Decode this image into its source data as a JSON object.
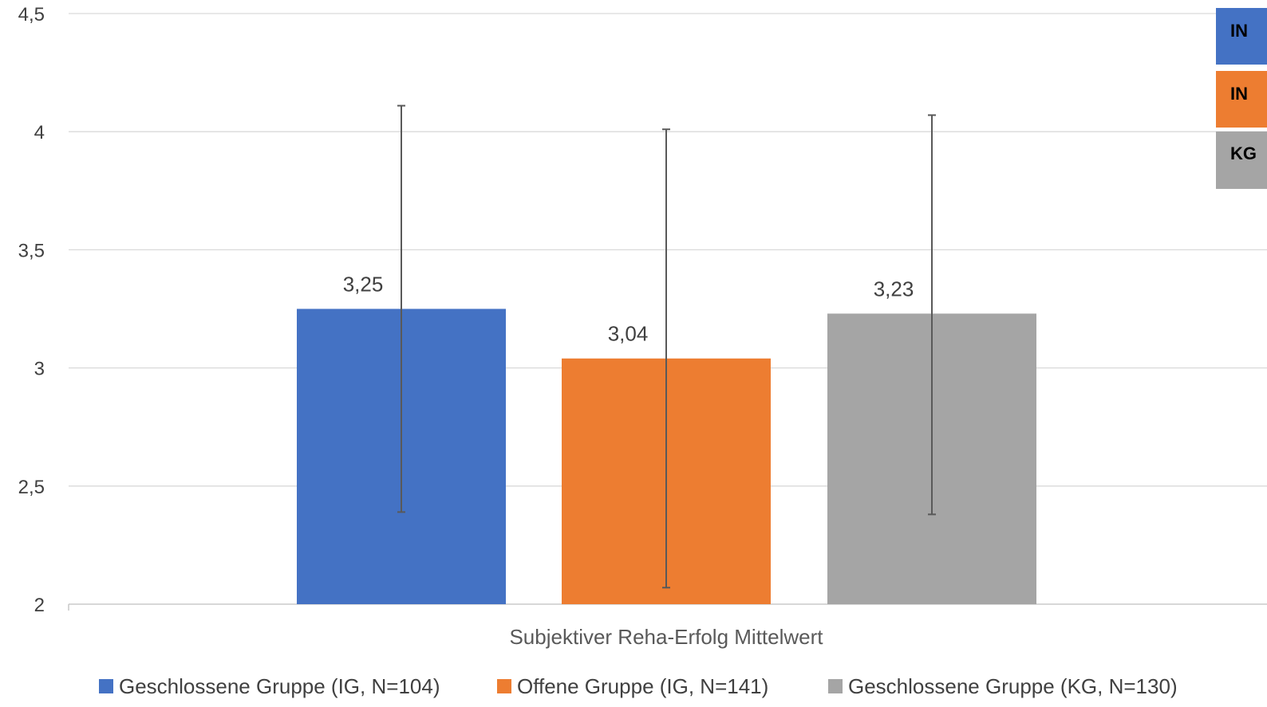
{
  "chart_data": {
    "type": "bar",
    "title": "",
    "xlabel": "",
    "ylabel": "",
    "categories": [
      "Subjektiver Reha-Erfolg Mittelwert"
    ],
    "ylim": [
      2,
      4.5
    ],
    "yticks": [
      "2",
      "2,5",
      "3",
      "3,5",
      "4",
      "4,5"
    ],
    "ytick_values": [
      2,
      2.5,
      3,
      3.5,
      4,
      4.5
    ],
    "grid": true,
    "legend_position": "bottom",
    "series": [
      {
        "name": "Geschlossene Gruppe (IG, N=104)",
        "color": "#4472C4",
        "value": 3.25,
        "label": "3,25",
        "error_low": 2.39,
        "error_high": 4.11
      },
      {
        "name": "Offene Gruppe (IG, N=141)",
        "color": "#ED7D31",
        "value": 3.04,
        "label": "3,04",
        "error_low": 2.07,
        "error_high": 4.01
      },
      {
        "name": "Geschlossene Gruppe (KG, N=130)",
        "color": "#A5A5A5",
        "value": 3.23,
        "label": "3,23",
        "error_low": 2.38,
        "error_high": 4.07
      }
    ]
  },
  "side_legend": [
    {
      "text": "IN",
      "color": "#4472C4"
    },
    {
      "text": "IN",
      "color": "#ED7D31"
    },
    {
      "text": "KG",
      "color": "#A5A5A5"
    }
  ]
}
